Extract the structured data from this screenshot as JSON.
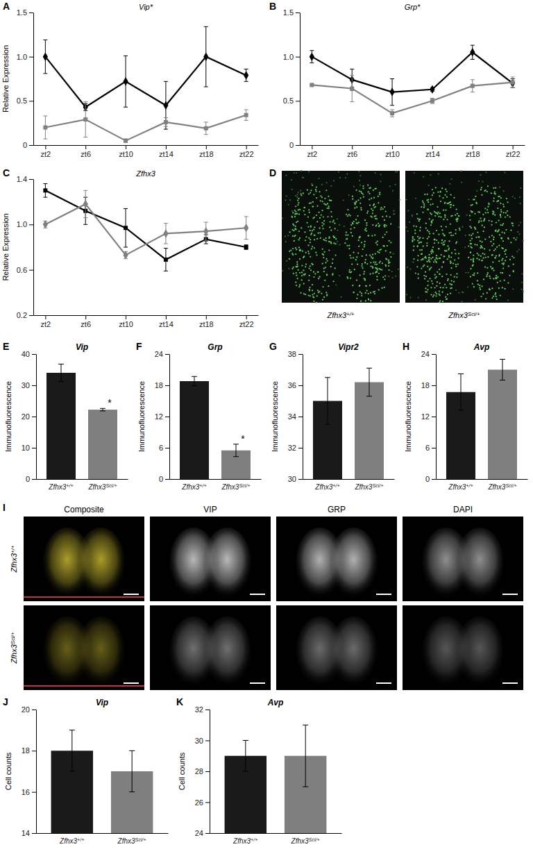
{
  "chart_data": [
    {
      "type": "line",
      "panel": "A",
      "title": "Vip*",
      "categories": [
        "zt2",
        "zt6",
        "zt10",
        "zt14",
        "zt18",
        "zt22"
      ],
      "y_label": "Relative Expression",
      "ylim": [
        0,
        1.5
      ],
      "yticks": [
        0,
        0.5,
        {
          "value": 1,
          "label": "1.0"
        },
        1.5
      ],
      "series": [
        {
          "color": "#000000",
          "marker": "diamond",
          "values": [
            1.0,
            0.43,
            0.72,
            0.45,
            1.0,
            0.79
          ],
          "errors": [
            0.19,
            0.04,
            0.29,
            0.27,
            0.34,
            0.07
          ]
        },
        {
          "color": "#808080",
          "marker": "square",
          "values": [
            0.2,
            0.29,
            0.05,
            0.26,
            0.19,
            0.34
          ],
          "errors": [
            0.13,
            0.2,
            0.02,
            0.05,
            0.07,
            0.06
          ]
        }
      ]
    },
    {
      "type": "line",
      "panel": "B",
      "title": "Grp*",
      "categories": [
        "zt2",
        "zt6",
        "zt10",
        "zt14",
        "zt18",
        "zt22"
      ],
      "ylim": [
        0,
        1.5
      ],
      "yticks": [
        0,
        0.5,
        {
          "value": 1,
          "label": "1.0"
        },
        1.5
      ],
      "series": [
        {
          "color": "#000000",
          "marker": "diamond",
          "values": [
            1.0,
            0.74,
            0.6,
            0.63,
            1.05,
            0.7
          ],
          "errors": [
            0.07,
            0.12,
            0.15,
            0.02,
            0.08,
            0.05
          ]
        },
        {
          "color": "#808080",
          "marker": "square",
          "values": [
            0.68,
            0.64,
            0.36,
            0.5,
            0.67,
            0.71
          ],
          "errors": [
            0.01,
            0.15,
            0.04,
            0.03,
            0.07,
            0.06
          ]
        }
      ]
    },
    {
      "type": "line",
      "panel": "C",
      "title": "Zfhx3",
      "categories": [
        "zt2",
        "zt6",
        "zt10",
        "zt14",
        "zt18",
        "zt22"
      ],
      "y_label": "Relative Expression",
      "ylim": [
        0.2,
        1.4
      ],
      "yticks": [
        0.2,
        0.6,
        {
          "value": 1,
          "label": "1.0"
        },
        1.4
      ],
      "series": [
        {
          "color": "#000000",
          "marker": "square",
          "values": [
            1.3,
            1.12,
            0.97,
            0.69,
            0.87,
            0.8
          ],
          "errors": [
            0.06,
            0.12,
            0.17,
            0.1,
            0.04,
            0.02
          ]
        },
        {
          "color": "#808080",
          "marker": "diamond",
          "values": [
            1.0,
            1.18,
            0.73,
            0.92,
            0.94,
            0.97
          ],
          "errors": [
            0.03,
            0.12,
            0.03,
            0.09,
            0.08,
            0.1
          ]
        }
      ]
    },
    {
      "type": "bar",
      "panel": "E",
      "title": "Vip",
      "y_label": "Immunofluorescence",
      "categories": [
        "Zfhx3+/+",
        "Zfhx3Sci/+"
      ],
      "colors": [
        "#1a1a1a",
        "#7f7f7f"
      ],
      "values": [
        34,
        22.2
      ],
      "errors": [
        2.8,
        0.4
      ],
      "ylim": [
        0,
        40
      ],
      "yticks": [
        0,
        10,
        20,
        30,
        40
      ],
      "annotations": [
        {
          "category": "Zfhx3Sci/+",
          "text": "*"
        }
      ]
    },
    {
      "type": "bar",
      "panel": "F",
      "title": "Grp",
      "y_label": "Immunofluorescence",
      "categories": [
        "Zfhx3+/+",
        "Zfhx3Sci/+"
      ],
      "colors": [
        "#1a1a1a",
        "#7f7f7f"
      ],
      "values": [
        18.8,
        5.5
      ],
      "errors": [
        0.9,
        1.2
      ],
      "ylim": [
        0,
        24
      ],
      "yticks": [
        0,
        6,
        12,
        18,
        24
      ],
      "annotations": [
        {
          "category": "Zfhx3Sci/+",
          "text": "*"
        }
      ]
    },
    {
      "type": "bar",
      "panel": "G",
      "title": "Vipr2",
      "y_label": "Immunofluorescence",
      "categories": [
        "Zfhx3+/+",
        "Zfhx3Sci/+"
      ],
      "colors": [
        "#1a1a1a",
        "#7f7f7f"
      ],
      "values": [
        35,
        36.2
      ],
      "errors": [
        1.5,
        0.9
      ],
      "ylim": [
        30,
        38
      ],
      "yticks": [
        30,
        32,
        34,
        36,
        38
      ]
    },
    {
      "type": "bar",
      "panel": "H",
      "title": "Avp",
      "y_label": "Immunofluorescence",
      "categories": [
        "Zfhx3+/+",
        "Zfhx3Sci/+"
      ],
      "colors": [
        "#1a1a1a",
        "#7f7f7f"
      ],
      "values": [
        16.7,
        21
      ],
      "errors": [
        3.5,
        2
      ],
      "ylim": [
        0,
        24
      ],
      "yticks": [
        0,
        6,
        12,
        18,
        24
      ]
    },
    {
      "type": "bar",
      "panel": "J",
      "title": "Vip",
      "y_label": "Cell counts",
      "categories": [
        "Zfhx3+/+",
        "Zfhx3Sci/+"
      ],
      "colors": [
        "#1a1a1a",
        "#7f7f7f"
      ],
      "values": [
        18,
        17
      ],
      "errors": [
        1,
        1
      ],
      "ylim": [
        14,
        20
      ],
      "yticks": [
        14,
        16,
        18,
        20
      ]
    },
    {
      "type": "bar",
      "panel": "K",
      "title": "Avp",
      "y_label": "Cell counts",
      "categories": [
        "Zfhx3+/+",
        "Zfhx3Sci/+"
      ],
      "colors": [
        "#1a1a1a",
        "#7f7f7f"
      ],
      "values": [
        29,
        29
      ],
      "errors": [
        1,
        2
      ],
      "ylim": [
        24,
        32
      ],
      "yticks": [
        24,
        26,
        28,
        30,
        32
      ]
    }
  ],
  "images": {
    "D": {
      "panel": "D",
      "labels": [
        "Zfhx3+/+",
        "Zfhx3Sci/+"
      ]
    },
    "I": {
      "panel": "I",
      "columns": [
        "Composite",
        "VIP",
        "GRP",
        "DAPI"
      ],
      "rows": [
        "Zfhx3+/+",
        "Zfhx3Sci/+"
      ]
    }
  }
}
